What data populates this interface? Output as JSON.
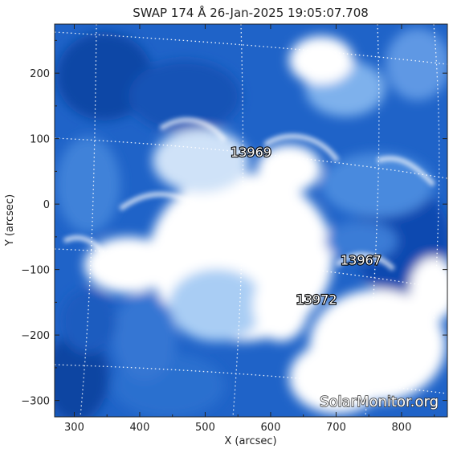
{
  "chart_data": {
    "type": "heatmap",
    "title": "SWAP 174 Å 26-Jan-2025 19:05:07.708",
    "xlabel": "X (arcsec)",
    "ylabel": "Y (arcsec)",
    "xlim": [
      270,
      870
    ],
    "ylim": [
      -325,
      275
    ],
    "xticks": [
      300,
      400,
      500,
      600,
      700,
      800
    ],
    "yticks": [
      -300,
      -200,
      -100,
      0,
      100,
      200
    ],
    "colormap": [
      "#0a46a8",
      "#1f63c8",
      "#5a93e2",
      "#a9cdf4",
      "#ffffff"
    ],
    "grid": "dotted heliographic grid",
    "active_regions": [
      {
        "label": "13969",
        "x": 570,
        "y": 80
      },
      {
        "label": "13967",
        "x": 738,
        "y": -85
      },
      {
        "label": "13972",
        "x": 670,
        "y": -145
      }
    ],
    "watermark": "SolarMonitor.org"
  }
}
